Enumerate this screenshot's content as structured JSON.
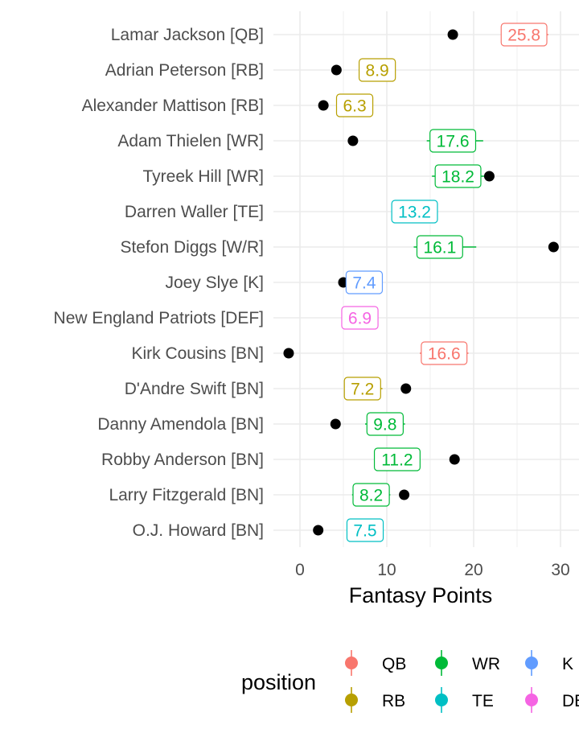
{
  "chart_data": {
    "type": "scatter",
    "title": "",
    "xlabel": "Fantasy Points",
    "ylabel": "",
    "xlim": [
      -3,
      31
    ],
    "x_ticks": [
      0,
      10,
      20,
      30
    ],
    "grid": true,
    "legend": {
      "title": "position",
      "placement": "bottom",
      "entries": [
        {
          "name": "QB",
          "color": "#F8766D"
        },
        {
          "name": "WR",
          "color": "#00BA38"
        },
        {
          "name": "K",
          "color": "#619CFF"
        },
        {
          "name": "RB",
          "color": "#B79F00"
        },
        {
          "name": "TE",
          "color": "#00BFC4"
        },
        {
          "name": "DEF",
          "color": "#F564E3"
        }
      ]
    },
    "players": [
      {
        "name": "Lamar Jackson [QB]",
        "position": "QB",
        "actual": 17.6,
        "projected": 25.8,
        "range": [
          23.2,
          28.6
        ]
      },
      {
        "name": "Adrian Peterson [RB]",
        "position": "RB",
        "actual": 4.2,
        "projected": 8.9,
        "range": [
          6.9,
          11.0
        ]
      },
      {
        "name": "Alexander Mattison [RB]",
        "position": "RB",
        "actual": 2.7,
        "projected": 6.3,
        "range": [
          4.3,
          8.3
        ]
      },
      {
        "name": "Adam Thielen [WR]",
        "position": "WR",
        "actual": 6.1,
        "projected": 17.6,
        "range": [
          14.6,
          21.1
        ]
      },
      {
        "name": "Tyreek Hill [WR]",
        "position": "WR",
        "actual": 21.8,
        "projected": 18.2,
        "range": [
          15.2,
          21.2
        ]
      },
      {
        "name": "Darren Waller [TE]",
        "position": "TE",
        "actual": null,
        "projected": 13.2,
        "range": [
          10.6,
          15.8
        ]
      },
      {
        "name": "Stefon Diggs [W/R]",
        "position": "WR",
        "actual": 29.2,
        "projected": 16.1,
        "range": [
          13.1,
          20.3
        ]
      },
      {
        "name": "Joey Slye [K]",
        "position": "K",
        "actual": 5.0,
        "projected": 7.4,
        "range": [
          5.4,
          9.4
        ]
      },
      {
        "name": "New England Patriots [DEF]",
        "position": "DEF",
        "actual": null,
        "projected": 6.9,
        "range": [
          4.9,
          8.9
        ]
      },
      {
        "name": "Kirk Cousins [BN]",
        "position": "QB",
        "actual": -1.3,
        "projected": 16.6,
        "range": [
          13.8,
          19.4
        ]
      },
      {
        "name": "D'Andre Swift [BN]",
        "position": "RB",
        "actual": 12.2,
        "projected": 7.2,
        "range": [
          5.1,
          9.5
        ]
      },
      {
        "name": "Danny Amendola [BN]",
        "position": "WR",
        "actual": 4.1,
        "projected": 9.8,
        "range": [
          7.5,
          12.1
        ]
      },
      {
        "name": "Robby Anderson [BN]",
        "position": "WR",
        "actual": 17.8,
        "projected": 11.2,
        "range": [
          8.6,
          13.8
        ]
      },
      {
        "name": "Larry Fitzgerald [BN]",
        "position": "WR",
        "actual": 12.0,
        "projected": 8.2,
        "range": [
          6.0,
          10.4
        ]
      },
      {
        "name": "O.J. Howard [BN]",
        "position": "TE",
        "actual": 2.1,
        "projected": 7.5,
        "range": [
          5.5,
          9.5
        ]
      }
    ]
  }
}
